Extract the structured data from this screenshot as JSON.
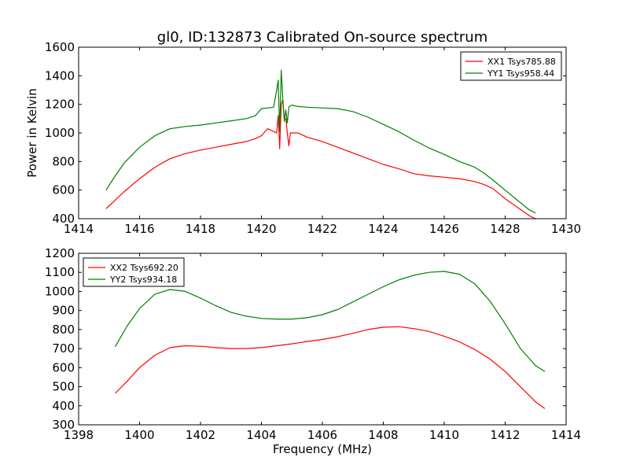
{
  "chart_data": [
    {
      "type": "line",
      "title": "gl0, ID:132873 Calibrated On-source spectrum",
      "xlabel": "",
      "ylabel": "Power in Kelvin",
      "xlim": [
        1414,
        1430
      ],
      "ylim": [
        400,
        1600
      ],
      "xticks": [
        "1414",
        "1416",
        "1418",
        "1420",
        "1422",
        "1424",
        "1426",
        "1428",
        "1430"
      ],
      "yticks": [
        "400",
        "600",
        "800",
        "1000",
        "1200",
        "1400",
        "1600"
      ],
      "grid": false,
      "legend_position": "top-right",
      "series": [
        {
          "name": "XX1 Tsys785.88",
          "color": "#ff0000",
          "x": [
            1414.9,
            1415.2,
            1415.5,
            1416.0,
            1416.5,
            1417.0,
            1417.5,
            1418.0,
            1418.5,
            1419.0,
            1419.5,
            1419.8,
            1420.0,
            1420.2,
            1420.4,
            1420.5,
            1420.55,
            1420.6,
            1420.65,
            1420.7,
            1420.75,
            1420.8,
            1420.85,
            1420.9,
            1420.95,
            1421.0,
            1421.2,
            1421.5,
            1422.0,
            1422.5,
            1423.0,
            1423.5,
            1424.0,
            1424.5,
            1425.0,
            1425.5,
            1426.0,
            1426.5,
            1427.0,
            1427.3,
            1427.6,
            1428.0,
            1428.4,
            1428.8,
            1429.0
          ],
          "y": [
            470,
            530,
            590,
            680,
            760,
            820,
            855,
            880,
            900,
            920,
            940,
            960,
            980,
            1030,
            1010,
            1000,
            1120,
            890,
            1200,
            1230,
            1100,
            1100,
            1000,
            910,
            1000,
            1000,
            1000,
            970,
            940,
            900,
            860,
            820,
            780,
            750,
            715,
            700,
            690,
            680,
            660,
            640,
            610,
            540,
            480,
            420,
            400
          ]
        },
        {
          "name": "YY1 Tsys958.44",
          "color": "#008000",
          "x": [
            1414.9,
            1415.2,
            1415.5,
            1416.0,
            1416.5,
            1417.0,
            1417.5,
            1418.0,
            1418.5,
            1419.0,
            1419.5,
            1419.8,
            1420.0,
            1420.2,
            1420.4,
            1420.5,
            1420.55,
            1420.6,
            1420.65,
            1420.7,
            1420.75,
            1420.8,
            1420.85,
            1420.9,
            1420.95,
            1421.0,
            1421.2,
            1421.5,
            1422.0,
            1422.5,
            1423.0,
            1423.5,
            1424.0,
            1424.5,
            1425.0,
            1425.5,
            1426.0,
            1426.5,
            1427.0,
            1427.3,
            1427.6,
            1428.0,
            1428.4,
            1428.8,
            1429.0
          ],
          "y": [
            600,
            700,
            790,
            900,
            980,
            1030,
            1045,
            1055,
            1070,
            1085,
            1100,
            1120,
            1170,
            1175,
            1180,
            1300,
            1370,
            1010,
            1440,
            1250,
            1080,
            1160,
            1070,
            1180,
            1190,
            1195,
            1185,
            1180,
            1175,
            1170,
            1150,
            1110,
            1060,
            1010,
            950,
            895,
            850,
            800,
            760,
            720,
            670,
            600,
            530,
            460,
            440
          ]
        }
      ]
    },
    {
      "type": "line",
      "title": "",
      "xlabel": "Frequency (MHz)",
      "ylabel": "",
      "xlim": [
        1398,
        1414
      ],
      "ylim": [
        300,
        1200
      ],
      "xticks": [
        "1398",
        "1400",
        "1402",
        "1404",
        "1406",
        "1408",
        "1410",
        "1412",
        "1414"
      ],
      "yticks": [
        "300",
        "400",
        "500",
        "600",
        "700",
        "800",
        "900",
        "1000",
        "1100",
        "1200"
      ],
      "grid": false,
      "legend_position": "top-left",
      "series": [
        {
          "name": "XX2 Tsys692.20",
          "color": "#ff0000",
          "x": [
            1399.2,
            1399.6,
            1400.0,
            1400.5,
            1401.0,
            1401.5,
            1402.0,
            1402.5,
            1403.0,
            1403.5,
            1404.0,
            1404.5,
            1405.0,
            1405.5,
            1406.0,
            1406.5,
            1407.0,
            1407.5,
            1408.0,
            1408.5,
            1409.0,
            1409.5,
            1410.0,
            1410.5,
            1411.0,
            1411.5,
            1412.0,
            1412.5,
            1413.0,
            1413.3
          ],
          "y": [
            465,
            530,
            600,
            665,
            705,
            715,
            712,
            705,
            700,
            700,
            705,
            715,
            725,
            737,
            748,
            762,
            780,
            800,
            812,
            815,
            805,
            790,
            765,
            735,
            695,
            645,
            580,
            500,
            420,
            385
          ]
        },
        {
          "name": "YY2 Tsys934.18",
          "color": "#008000",
          "x": [
            1399.2,
            1399.6,
            1400.0,
            1400.5,
            1401.0,
            1401.5,
            1402.0,
            1402.5,
            1403.0,
            1403.5,
            1404.0,
            1404.5,
            1405.0,
            1405.5,
            1406.0,
            1406.5,
            1407.0,
            1407.5,
            1408.0,
            1408.5,
            1409.0,
            1409.5,
            1410.0,
            1410.5,
            1411.0,
            1411.5,
            1412.0,
            1412.5,
            1413.0,
            1413.3
          ],
          "y": [
            710,
            820,
            910,
            985,
            1010,
            1000,
            965,
            925,
            890,
            870,
            858,
            855,
            855,
            862,
            878,
            905,
            945,
            985,
            1025,
            1060,
            1085,
            1100,
            1105,
            1090,
            1040,
            950,
            830,
            700,
            610,
            580
          ]
        }
      ]
    }
  ]
}
